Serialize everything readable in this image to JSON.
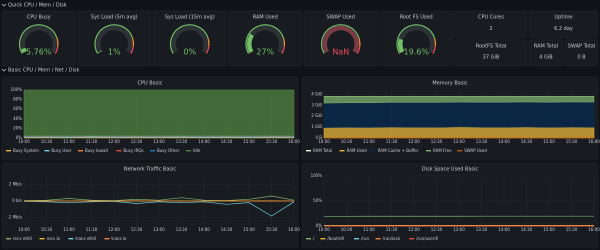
{
  "rows": [
    {
      "title": "Quick CPU / Mem / Disk"
    },
    {
      "title": "Basic CPU / Mem / Net / Disk"
    }
  ],
  "gauges": [
    {
      "title": "CPU Busy",
      "value": 5.76,
      "value_label": "5.76%",
      "color": "#73bf69"
    },
    {
      "title": "Sys Load (5m avg)",
      "value": 1,
      "value_label": "1%",
      "color": "#73bf69"
    },
    {
      "title": "Sys Load (15m avg)",
      "value": 0,
      "value_label": "0%",
      "color": "#73bf69"
    },
    {
      "title": "RAM Used",
      "value": 27,
      "value_label": "27%",
      "color": "#73bf69"
    },
    {
      "title": "SWAP Used",
      "value": null,
      "value_label": "NaN",
      "color": "#f2495c"
    },
    {
      "title": "Root FS Used",
      "value": 19.6,
      "value_label": "19.6%",
      "color": "#73bf69"
    }
  ],
  "stats": [
    {
      "title": "CPU Cores",
      "value": "2"
    },
    {
      "title": "Uptime",
      "value": "6.2 day"
    },
    {
      "title": "RootFS Total",
      "value": "37 GiB"
    },
    {
      "title": "RAM Total",
      "value": "4 GiB"
    },
    {
      "title": "SWAP Total",
      "value": "0 B"
    }
  ],
  "x": [
    "10:00",
    "10:30",
    "11:00",
    "11:30",
    "12:00",
    "12:30",
    "13:00",
    "13:30",
    "14:00",
    "14:30",
    "15:00",
    "15:30",
    "16:00"
  ],
  "panels": [
    {
      "title": "CPU Basic",
      "ylim": [
        0,
        100
      ],
      "yticks": [
        {
          "value": 0,
          "label": "0%"
        },
        {
          "value": 20,
          "label": "20%"
        },
        {
          "value": 40,
          "label": "40%"
        },
        {
          "value": 60,
          "label": "60%"
        },
        {
          "value": 80,
          "label": "80%"
        },
        {
          "value": 100,
          "label": "100%"
        }
      ],
      "series": [
        {
          "name": "Busy System",
          "color": "#eab839",
          "stack": true,
          "values": [
            1.5,
            1.6,
            1.5,
            1.7,
            1.5,
            1.6,
            1.5,
            1.6,
            1.5,
            1.6,
            1.5,
            1.6,
            1.5
          ]
        },
        {
          "name": "Busy User",
          "color": "#6ed0e0",
          "stack": true,
          "values": [
            2.5,
            2.6,
            2.4,
            2.8,
            2.5,
            2.6,
            2.5,
            2.7,
            2.4,
            2.6,
            2.5,
            2.6,
            2.5
          ]
        },
        {
          "name": "Busy Iowait",
          "color": "#ef843c",
          "stack": true,
          "values": [
            0.2,
            0.1,
            0.2,
            0.1,
            0.2,
            0.1,
            0.2,
            0.1,
            0.2,
            0.1,
            0.1,
            0.2,
            0.2
          ]
        },
        {
          "name": "Busy IRQs",
          "color": "#e24d42",
          "stack": true,
          "values": [
            0.1,
            0.1,
            0.1,
            0.1,
            0.1,
            0.1,
            0.1,
            0.1,
            0.1,
            0.1,
            0.1,
            0.1,
            0.1
          ]
        },
        {
          "name": "Busy Other",
          "color": "#1f78c1",
          "stack": true,
          "values": [
            0.3,
            0.3,
            0.3,
            0.3,
            0.3,
            0.3,
            0.3,
            0.3,
            0.3,
            0.3,
            0.3,
            0.3,
            0.3
          ]
        },
        {
          "name": "Idle",
          "color": "#508642",
          "stack": true,
          "values": [
            95.4,
            95.3,
            95.5,
            95,
            95.4,
            95.3,
            95.4,
            95.2,
            95.5,
            95.3,
            95.5,
            95.2,
            95.4
          ]
        }
      ]
    },
    {
      "title": "Memory Basic",
      "ylim": [
        0,
        4.4
      ],
      "yticks": [
        {
          "value": 0,
          "label": "0 B"
        },
        {
          "value": 1,
          "label": "1 GiB"
        },
        {
          "value": 2,
          "label": "2 GiB"
        },
        {
          "value": 3,
          "label": "3 GiB"
        },
        {
          "value": 4,
          "label": "4 GiB"
        }
      ],
      "series": [
        {
          "name": "RAM Total",
          "color": "#e0f9d7",
          "stack": false,
          "values": [
            3.82,
            3.82,
            3.82,
            3.82,
            3.82,
            3.82,
            3.82,
            3.82,
            3.82,
            3.82,
            3.82,
            3.82,
            3.82
          ]
        },
        {
          "name": "RAM Used",
          "color": "#eab839",
          "stack": true,
          "values": [
            0.95,
            0.97,
            0.96,
            1,
            0.98,
            0.97,
            1.02,
            0.99,
            0.98,
            1.01,
            0.97,
            1,
            0.98
          ]
        },
        {
          "name": "RAM Cache + Buffer",
          "color": "#052b51",
          "stack": true,
          "values": [
            2.25,
            2.26,
            2.27,
            2.26,
            2.28,
            2.29,
            2.27,
            2.29,
            2.3,
            2.29,
            2.31,
            2.3,
            2.31
          ]
        },
        {
          "name": "RAM Free",
          "color": "#7eb26d",
          "stack": true,
          "values": [
            0.62,
            0.59,
            0.59,
            0.56,
            0.56,
            0.56,
            0.53,
            0.54,
            0.54,
            0.52,
            0.54,
            0.52,
            0.53
          ]
        },
        {
          "name": "SWAP Used",
          "color": "#c15c17",
          "stack": false,
          "values": [
            0,
            0,
            0,
            0,
            0,
            0,
            0,
            0,
            0,
            0,
            0,
            0,
            0
          ]
        }
      ]
    },
    {
      "title": "Network Traffic Basic",
      "ylim": [
        -3,
        3
      ],
      "yticks": [
        {
          "value": -2,
          "label": "-2 Mb/s"
        },
        {
          "value": 0,
          "label": "0 b/s"
        },
        {
          "value": 2,
          "label": "2 Mb/s"
        }
      ],
      "series": [
        {
          "name": "recv eth0",
          "color": "#7eb26d",
          "stack": false,
          "values": [
            0.05,
            0.1,
            0.3,
            0.1,
            0.05,
            0.2,
            0.1,
            0.4,
            0.1,
            0.05,
            0.2,
            0.6,
            0.1
          ]
        },
        {
          "name": "recv lo",
          "color": "#eab839",
          "stack": false,
          "values": [
            0.01,
            0.02,
            0.01,
            0.02,
            0.01,
            0.02,
            0.01,
            0.02,
            0.01,
            0.02,
            0.01,
            0.02,
            0.01
          ]
        },
        {
          "name": "trans eth0",
          "color": "#6ed0e0",
          "stack": false,
          "values": [
            -0.05,
            -0.1,
            -0.2,
            -0.1,
            -0.05,
            -0.3,
            -0.1,
            -0.2,
            -0.1,
            -0.4,
            -0.2,
            -1.8,
            -0.1
          ]
        },
        {
          "name": "trans lo",
          "color": "#ef843c",
          "stack": false,
          "values": [
            -0.01,
            -0.02,
            -0.01,
            -0.02,
            -0.01,
            -0.02,
            -0.01,
            -0.02,
            -0.01,
            -0.02,
            -0.01,
            -0.02,
            -0.01
          ]
        }
      ]
    },
    {
      "title": "Disk Space Used Basic",
      "ylim": [
        0,
        100
      ],
      "yticks": [
        {
          "value": 0,
          "label": "0%"
        },
        {
          "value": 50,
          "label": "50%"
        },
        {
          "value": 100,
          "label": "100%"
        }
      ],
      "series": [
        {
          "name": "/",
          "color": "#7eb26d",
          "stack": false,
          "values": [
            19.4,
            19.4,
            19.5,
            19.5,
            19.5,
            19.5,
            19.5,
            19.6,
            19.6,
            19.6,
            19.6,
            19.6,
            19.6
          ]
        },
        {
          "name": "/boot/efi",
          "color": "#eab839",
          "stack": false,
          "values": [
            1.2,
            1.2,
            1.2,
            1.2,
            1.2,
            1.2,
            1.2,
            1.2,
            1.2,
            1.2,
            1.2,
            1.2,
            1.2
          ]
        },
        {
          "name": "/run",
          "color": "#6ed0e0",
          "stack": false,
          "values": [
            0.3,
            0.3,
            0.3,
            0.3,
            0.3,
            0.3,
            0.3,
            0.3,
            0.3,
            0.3,
            0.3,
            0.3,
            0.3
          ]
        },
        {
          "name": "/run/lock",
          "color": "#ef843c",
          "stack": false,
          "values": [
            0,
            0,
            0,
            0,
            0,
            0,
            0,
            0,
            0,
            0,
            0,
            0,
            0
          ]
        },
        {
          "name": "/run/user/0",
          "color": "#e24d42",
          "stack": false,
          "values": [
            0,
            0,
            0,
            0,
            0,
            0,
            0,
            0,
            0,
            0,
            0,
            0,
            0
          ]
        }
      ]
    }
  ]
}
